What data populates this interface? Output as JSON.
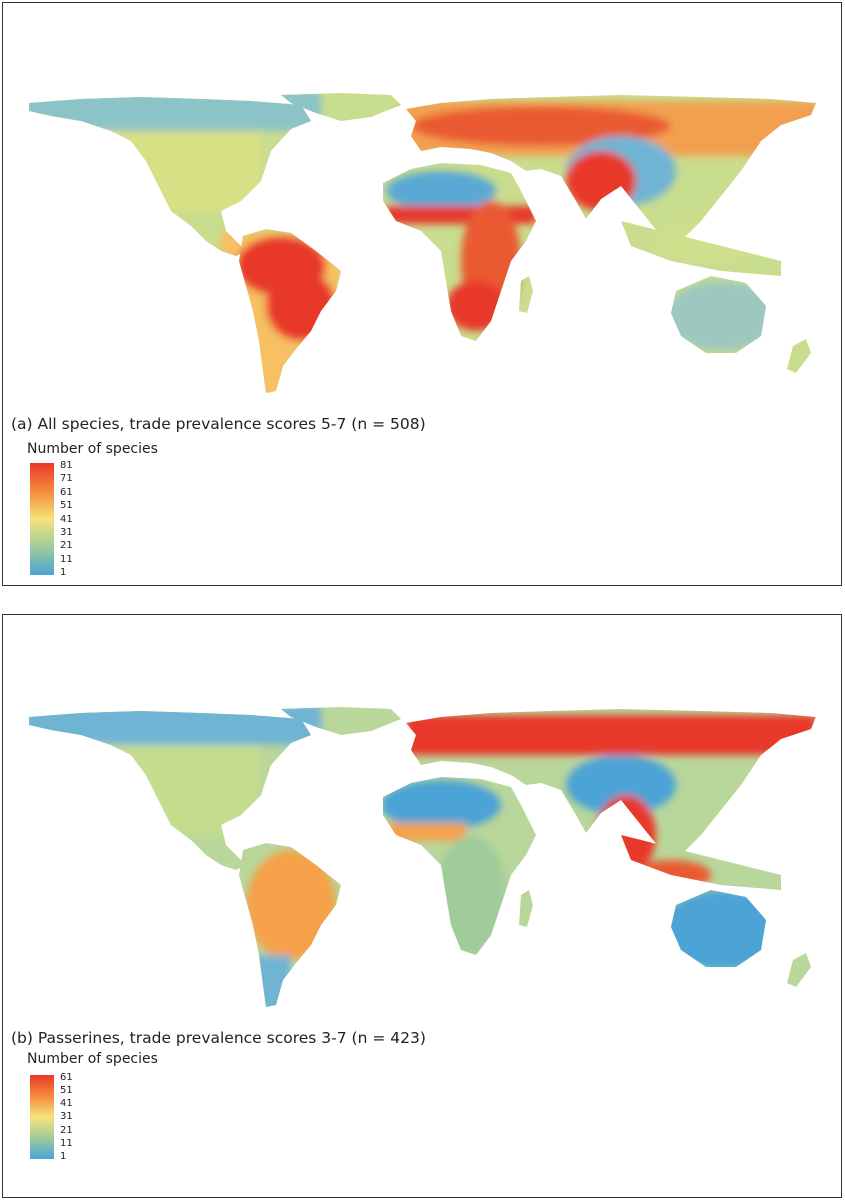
{
  "panels": [
    {
      "caption": "(a) All species, trade prevalence scores 5-7 (n = 508)",
      "legend": {
        "title": "Number of species",
        "ticks": [
          "81",
          "71",
          "61",
          "51",
          "41",
          "31",
          "21",
          "11",
          "1"
        ]
      }
    },
    {
      "caption": "(b) Passerines, trade prevalence scores 3-7 (n = 423)",
      "legend": {
        "title": "Number of species",
        "ticks": [
          "61",
          "51",
          "41",
          "31",
          "21",
          "11",
          "1"
        ]
      }
    }
  ],
  "colors": {
    "high": "#e8392a",
    "upper": "#f58a3c",
    "middle": "#f6e27a",
    "lower": "#9fcc9a",
    "low": "#4ba3d6",
    "border": "#333333"
  }
}
